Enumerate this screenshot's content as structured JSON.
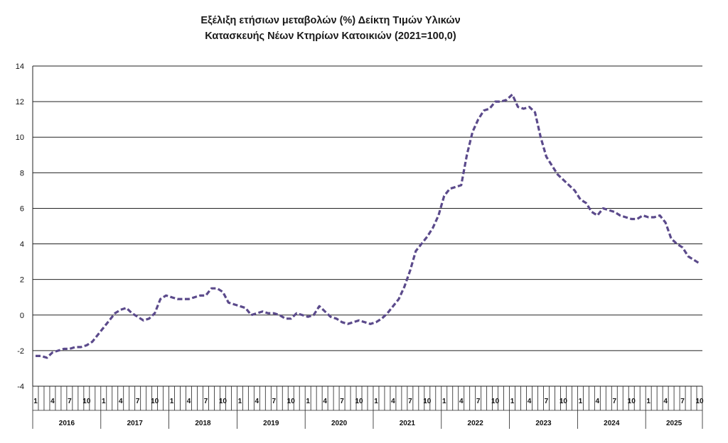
{
  "chart_data": {
    "type": "line",
    "title": "Εξέλιξη ετήσιων μεταβολών (%) Δείκτη Τιμών Υλικών",
    "subtitle": "Κατασκευής Νέων Κτηρίων Κατοικιών (2021=100,0)",
    "xlabel": "",
    "ylabel": "",
    "ylim": [
      -4,
      14
    ],
    "yticks": [
      "-4",
      "-2",
      "0",
      "2",
      "4",
      "6",
      "8",
      "10",
      "12",
      "14"
    ],
    "month_tick_labels": [
      "1",
      "4",
      "7",
      "10"
    ],
    "years": [
      "2016",
      "2017",
      "2018",
      "2019",
      "2020",
      "2021",
      "2022",
      "2023",
      "2024",
      "2025"
    ],
    "grid": "horizontal",
    "line_color": "#5b4a8b",
    "line_style": "dashed",
    "series": [
      {
        "values": [
          -2.3,
          -2.3,
          -2.4,
          -2.1,
          -2.0,
          -1.9,
          -1.9,
          -1.8,
          -1.8,
          -1.7,
          -1.5,
          -1.1,
          -0.7,
          -0.3,
          0.1,
          0.3,
          0.4,
          0.1,
          -0.1,
          -0.3,
          -0.2,
          0.1,
          0.9,
          1.1,
          1.0,
          0.9,
          0.9,
          0.9,
          1.0,
          1.1,
          1.1,
          1.5,
          1.5,
          1.3,
          0.7,
          0.6,
          0.5,
          0.4,
          0.0,
          0.1,
          0.2,
          0.1,
          0.1,
          0.0,
          -0.2,
          -0.2,
          0.1,
          0.0,
          -0.1,
          0.0,
          0.5,
          0.2,
          -0.1,
          -0.2,
          -0.4,
          -0.5,
          -0.4,
          -0.3,
          -0.4,
          -0.5,
          -0.4,
          -0.2,
          0.1,
          0.5,
          0.9,
          1.6,
          2.5,
          3.6,
          4.0,
          4.4,
          4.9,
          5.6,
          6.7,
          7.1,
          7.2,
          7.3,
          9.0,
          10.3,
          11.0,
          11.5,
          11.6,
          12.0,
          12.0,
          12.1,
          12.4,
          11.7,
          11.6,
          11.7,
          11.4,
          10.0,
          8.9,
          8.4,
          7.9,
          7.6,
          7.3,
          7.0,
          6.5,
          6.3,
          5.8,
          5.6,
          6.0,
          5.9,
          5.8,
          5.6,
          5.5,
          5.4,
          5.4,
          5.6,
          5.5,
          5.5,
          5.6,
          5.2,
          4.3,
          4.0,
          3.8,
          3.3,
          3.1,
          2.9
        ]
      }
    ]
  }
}
